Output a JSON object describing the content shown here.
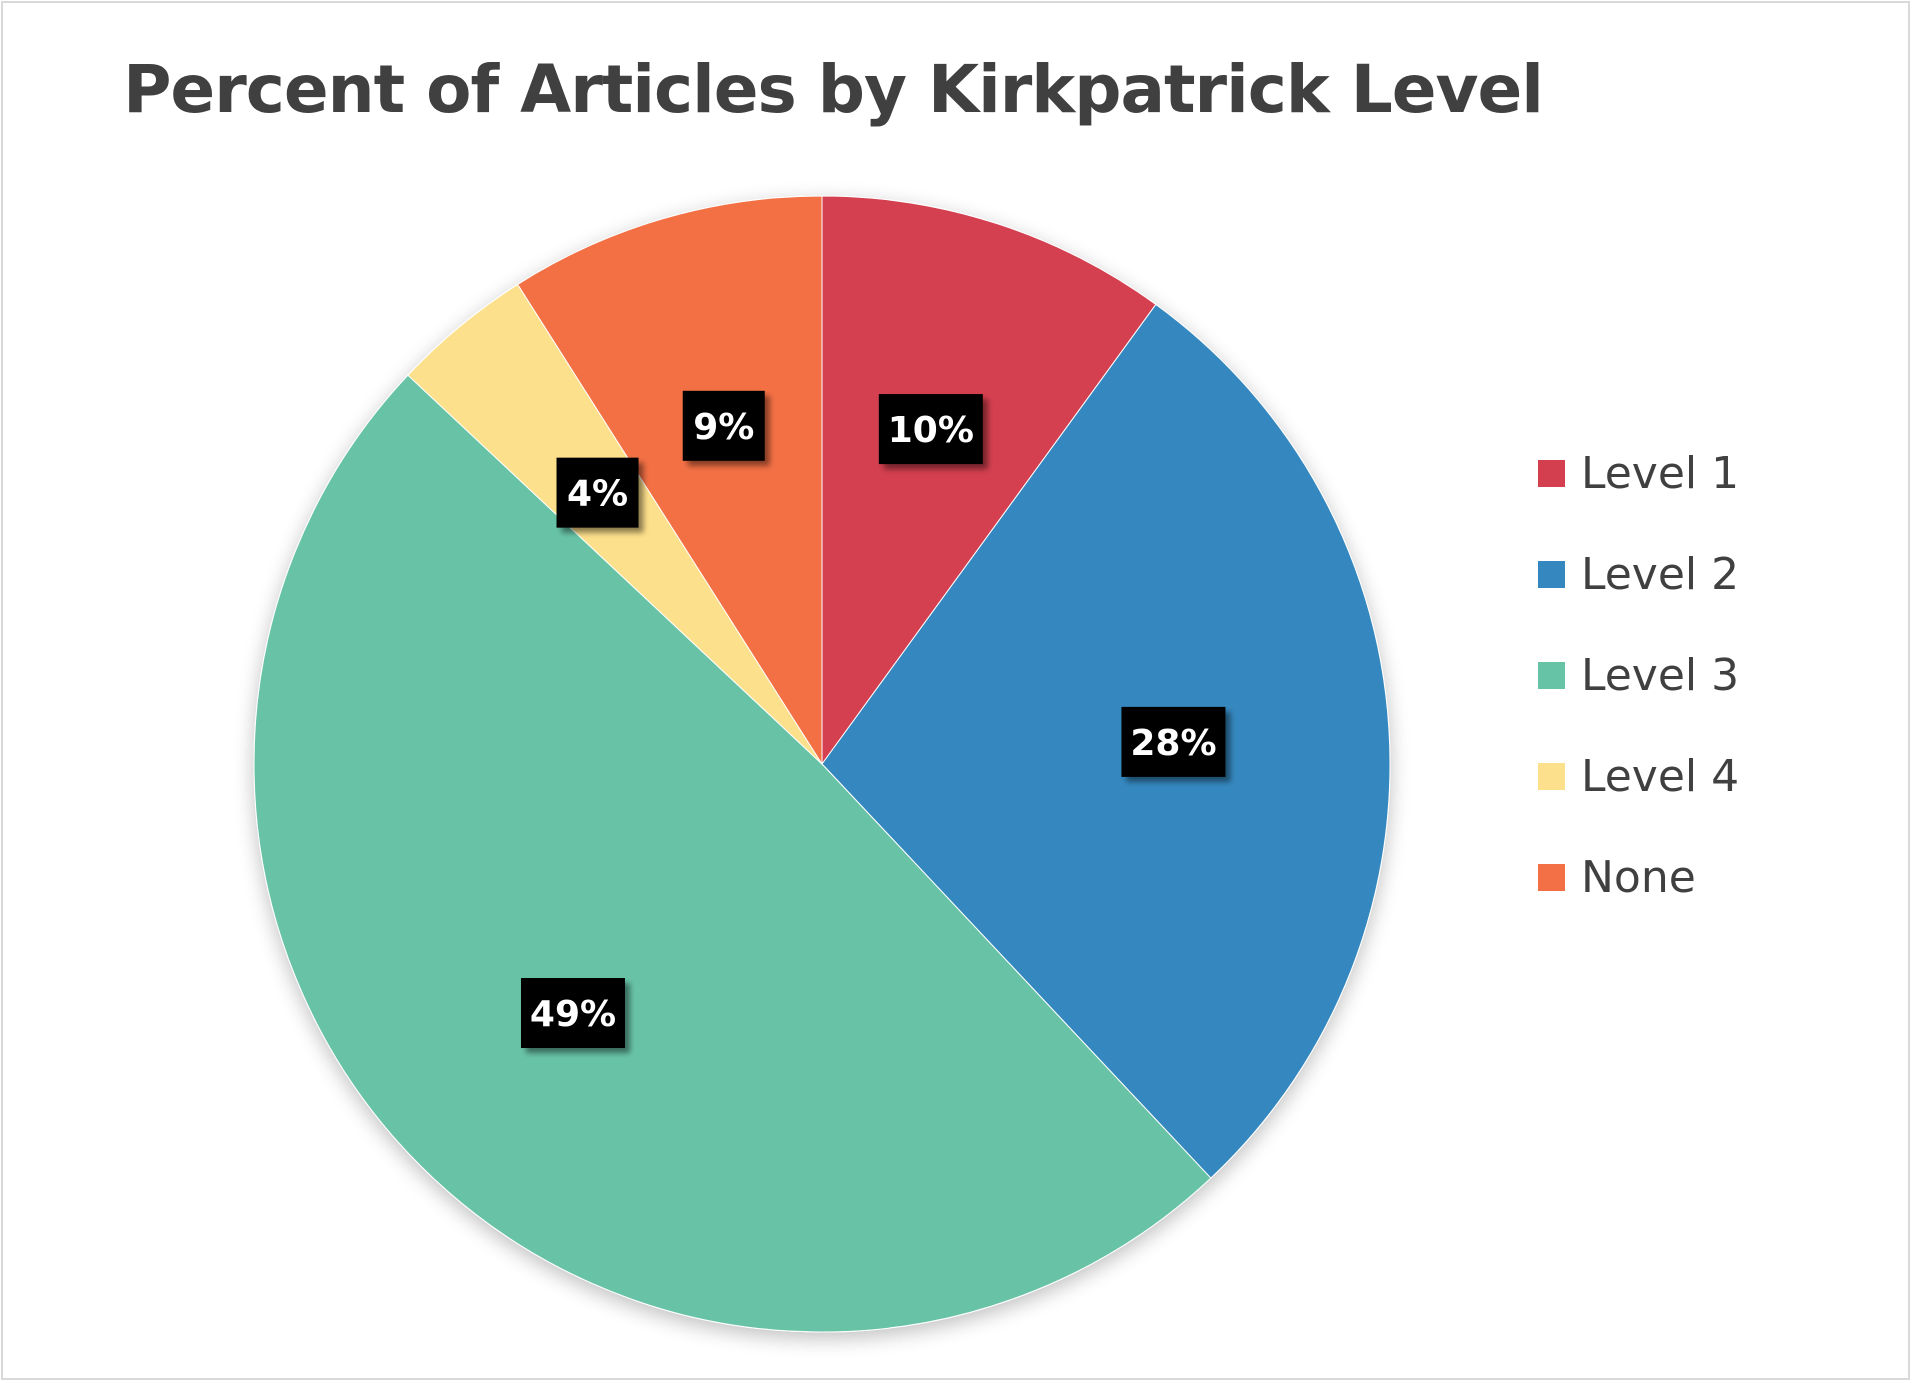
{
  "chart_data": {
    "type": "pie",
    "title": "Percent of Articles by Kirkpatrick Level",
    "slices": [
      {
        "label": "Level 1",
        "value": 10,
        "display": "10%",
        "color": "#d43f4f"
      },
      {
        "label": "Level 2",
        "value": 28,
        "display": "28%",
        "color": "#3588bf"
      },
      {
        "label": "Level 3",
        "value": 49,
        "display": "49%",
        "color": "#67c3a6"
      },
      {
        "label": "Level 4",
        "value": 4,
        "display": "4%",
        "color": "#fde08b"
      },
      {
        "label": "None",
        "value": 9,
        "display": "9%",
        "color": "#f36f45"
      }
    ],
    "start_angle_deg": 0,
    "direction": "clockwise",
    "legend_position": "right",
    "label_style": {
      "background": "#000000",
      "text": "#ffffff"
    }
  }
}
